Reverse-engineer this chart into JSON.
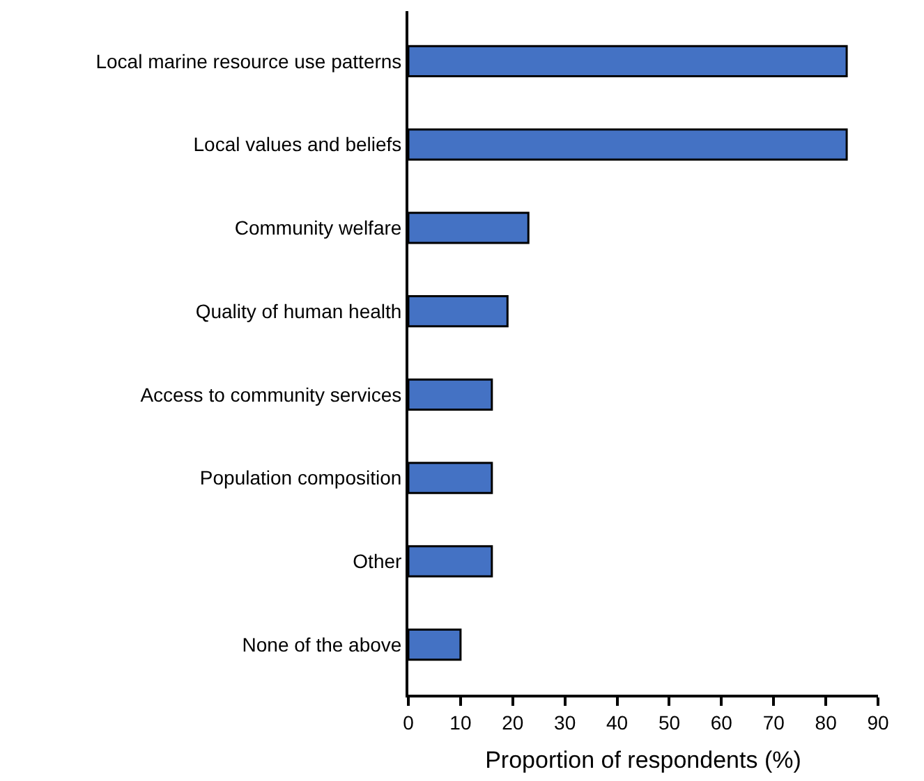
{
  "chart_data": {
    "type": "bar",
    "orientation": "horizontal",
    "xlabel": "Proportion of respondents (%)",
    "categories": [
      "Local marine resource use patterns",
      "Local values and beliefs",
      "Community welfare",
      "Quality of human health",
      "Access to community services",
      "Population composition",
      "Other",
      "None of the above"
    ],
    "values": [
      84,
      84,
      23,
      19,
      16,
      16,
      16,
      10
    ],
    "color": "#4472c4",
    "xlim": [
      0,
      90
    ],
    "xticks": [
      0,
      10,
      20,
      30,
      40,
      50,
      60,
      70,
      80,
      90
    ]
  }
}
